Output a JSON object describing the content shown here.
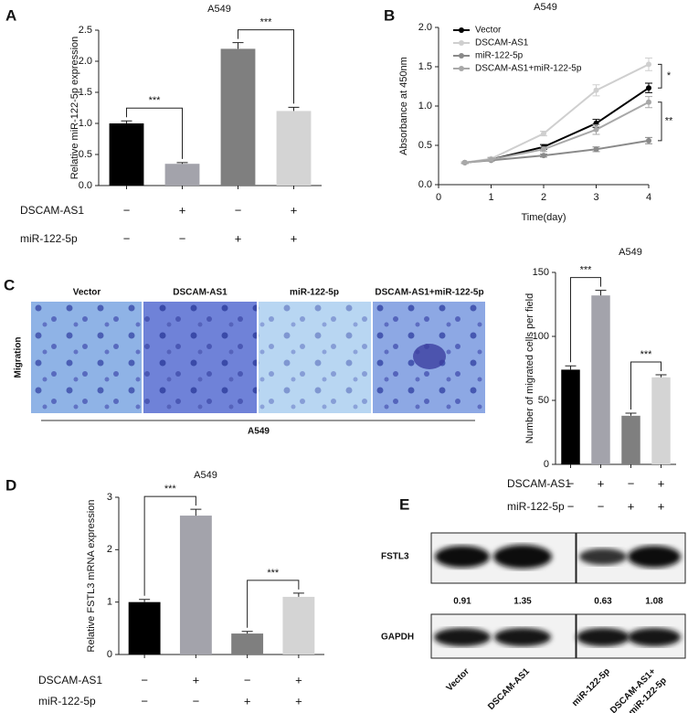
{
  "panel_labels": [
    "A",
    "B",
    "C",
    "D",
    "E"
  ],
  "chart_data": [
    {
      "type": "bar",
      "title": "A549",
      "ylabel": "Relative miR-122-5p expression",
      "categories": [
        null,
        null,
        null,
        null
      ],
      "values": [
        1.0,
        0.35,
        2.2,
        1.2
      ],
      "errors": [
        0.04,
        0.02,
        0.1,
        0.06
      ],
      "colors": [
        "#000000",
        "#a3a3ab",
        "#7f7f7f",
        "#d4d4d4"
      ],
      "ylim": [
        0,
        2.5
      ],
      "yticks": [
        {
          "value": 0,
          "label": "0.0"
        },
        0.5,
        {
          "value": 1,
          "label": "1.0"
        },
        1.5,
        {
          "value": 2,
          "label": "2.0"
        },
        2.5
      ],
      "annotations": [
        "***",
        "***"
      ],
      "treatments": [
        {
          "name": "DSCAM-AS1",
          "signs": [
            "−",
            "+",
            "−",
            "+"
          ]
        },
        {
          "name": "miR-122-5p",
          "signs": [
            "−",
            "−",
            "+",
            "+"
          ]
        }
      ]
    },
    {
      "type": "line",
      "title": "A549",
      "xlabel": "Time(day)",
      "ylabel": "Absorbance at 450nm",
      "x": [
        0.5,
        1,
        2,
        3,
        4
      ],
      "xlim": [
        0,
        4
      ],
      "xticks": [
        0,
        1,
        2,
        3,
        4
      ],
      "ylim": [
        0,
        2
      ],
      "yticks": [
        {
          "value": 0,
          "label": "0.0"
        },
        0.5,
        {
          "value": 1,
          "label": "1.0"
        },
        1.5,
        {
          "value": 2,
          "label": "2.0"
        }
      ],
      "series": [
        {
          "name": "Vector",
          "color": "#000000",
          "values": [
            0.28,
            0.32,
            0.48,
            0.78,
            1.23
          ],
          "errors": [
            0.01,
            0.02,
            0.03,
            0.05,
            0.06
          ]
        },
        {
          "name": "DSCAM-AS1",
          "color": "#cfcfcf",
          "values": [
            0.28,
            0.33,
            0.65,
            1.2,
            1.53
          ],
          "errors": [
            0.01,
            0.02,
            0.03,
            0.07,
            0.08
          ]
        },
        {
          "name": "miR-122-5p",
          "color": "#8a8a8a",
          "values": [
            0.28,
            0.31,
            0.37,
            0.45,
            0.56
          ],
          "errors": [
            0.01,
            0.01,
            0.02,
            0.03,
            0.04
          ]
        },
        {
          "name": "DSCAM-AS1+miR-122-5p",
          "color": "#a8a8a8",
          "values": [
            0.28,
            0.32,
            0.45,
            0.7,
            1.05
          ],
          "errors": [
            0.01,
            0.02,
            0.03,
            0.06,
            0.07
          ]
        }
      ],
      "annotations": [
        "*",
        "**"
      ]
    },
    {
      "type": "bar",
      "title": "A549",
      "ylabel": "Number of migrated cells per field",
      "categories": [
        null,
        null,
        null,
        null
      ],
      "values": [
        74,
        132,
        38,
        68
      ],
      "errors": [
        3,
        4,
        2,
        2
      ],
      "colors": [
        "#000000",
        "#a3a3ab",
        "#7f7f7f",
        "#d4d4d4"
      ],
      "ylim": [
        0,
        150
      ],
      "yticks": [
        0,
        50,
        100,
        150
      ],
      "annotations": [
        "***",
        "***"
      ],
      "treatments": [
        {
          "name": "DSCAM-AS1",
          "signs": [
            "−",
            "+",
            "−",
            "+"
          ]
        },
        {
          "name": "miR-122-5p",
          "signs": [
            "−",
            "−",
            "+",
            "+"
          ]
        }
      ]
    },
    {
      "type": "bar",
      "title": "A549",
      "ylabel": "Relative FSTL3 mRNA expression",
      "categories": [
        null,
        null,
        null,
        null
      ],
      "values": [
        1.0,
        2.65,
        0.4,
        1.1
      ],
      "errors": [
        0.05,
        0.12,
        0.04,
        0.07
      ],
      "colors": [
        "#000000",
        "#a3a3ab",
        "#7f7f7f",
        "#d4d4d4"
      ],
      "ylim": [
        0,
        3
      ],
      "yticks": [
        0,
        1,
        2,
        3
      ],
      "annotations": [
        "***",
        "***"
      ],
      "treatments": [
        {
          "name": "DSCAM-AS1",
          "signs": [
            "−",
            "+",
            "−",
            "+"
          ]
        },
        {
          "name": "miR-122-5p",
          "signs": [
            "−",
            "−",
            "+",
            "+"
          ]
        }
      ]
    }
  ],
  "migration": {
    "conditions": [
      "Vector",
      "DSCAM-AS1",
      "miR-122-5p",
      "DSCAM-AS1+miR-122-5p"
    ],
    "row_label": "Migration",
    "cell_line": "A549"
  },
  "western_blot": {
    "proteins": [
      "FSTL3",
      "GAPDH"
    ],
    "ratios": [
      0.91,
      1.35,
      0.63,
      1.08
    ],
    "lanes": [
      "Vector",
      "DSCAM-AS1",
      "miR-122-5p",
      [
        "DSCAM-AS1+",
        "miR-122-5p"
      ]
    ]
  }
}
